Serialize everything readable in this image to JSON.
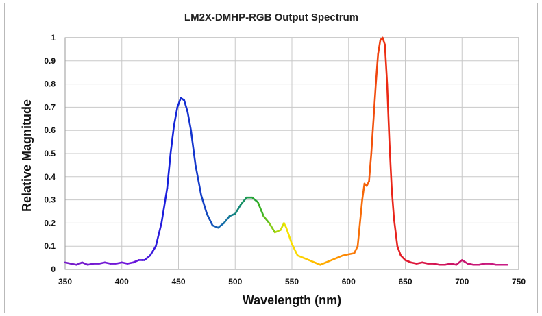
{
  "chart_data": {
    "type": "line",
    "title": "LM2X-DMHP-RGB Output Spectrum",
    "xlabel": "Wavelength (nm)",
    "ylabel": "Relative Magnitude",
    "xlim": [
      350,
      750
    ],
    "ylim": [
      0,
      1
    ],
    "x_ticks": [
      "350",
      "400",
      "450",
      "500",
      "550",
      "600",
      "650",
      "700",
      "750"
    ],
    "y_ticks": [
      "0",
      "0.1",
      "0.2",
      "0.3",
      "0.4",
      "0.5",
      "0.6",
      "0.7",
      "0.8",
      "0.9",
      "1"
    ],
    "grid": true,
    "legend": "none",
    "line_coloring": "wavelength-mapped spectrum (violet → blue → green → yellow → orange → red → magenta)",
    "series": [
      {
        "x": [
          350,
          355,
          360,
          365,
          370,
          375,
          380,
          385,
          390,
          395,
          400,
          405,
          410,
          415,
          418,
          420,
          425,
          430,
          435,
          440,
          443,
          446,
          449,
          452,
          455,
          458,
          461,
          465,
          470,
          475,
          480,
          485,
          490,
          495,
          500,
          505,
          510,
          515,
          520,
          525,
          530,
          535,
          540,
          543,
          545,
          550,
          555,
          560,
          565,
          570,
          575,
          580,
          585,
          590,
          595,
          600,
          605,
          608,
          610,
          612,
          614,
          616,
          618,
          620,
          622,
          624,
          626,
          628,
          630,
          632,
          634,
          636,
          638,
          640,
          643,
          646,
          650,
          655,
          660,
          665,
          670,
          675,
          680,
          685,
          690,
          695,
          700,
          705,
          710,
          715,
          720,
          725,
          730,
          735,
          740
        ],
        "y": [
          0.03,
          0.025,
          0.02,
          0.03,
          0.02,
          0.025,
          0.025,
          0.03,
          0.025,
          0.025,
          0.03,
          0.025,
          0.03,
          0.04,
          0.04,
          0.04,
          0.06,
          0.1,
          0.2,
          0.35,
          0.5,
          0.62,
          0.7,
          0.74,
          0.73,
          0.68,
          0.6,
          0.45,
          0.32,
          0.24,
          0.19,
          0.18,
          0.2,
          0.23,
          0.24,
          0.28,
          0.31,
          0.31,
          0.29,
          0.23,
          0.2,
          0.16,
          0.17,
          0.2,
          0.18,
          0.11,
          0.06,
          0.05,
          0.04,
          0.03,
          0.02,
          0.03,
          0.04,
          0.05,
          0.06,
          0.065,
          0.07,
          0.1,
          0.2,
          0.3,
          0.37,
          0.36,
          0.38,
          0.5,
          0.65,
          0.8,
          0.93,
          0.99,
          1.0,
          0.97,
          0.8,
          0.55,
          0.35,
          0.22,
          0.1,
          0.06,
          0.04,
          0.03,
          0.025,
          0.03,
          0.025,
          0.025,
          0.02,
          0.02,
          0.025,
          0.02,
          0.04,
          0.025,
          0.02,
          0.02,
          0.025,
          0.025,
          0.02,
          0.02,
          0.02
        ]
      }
    ]
  }
}
